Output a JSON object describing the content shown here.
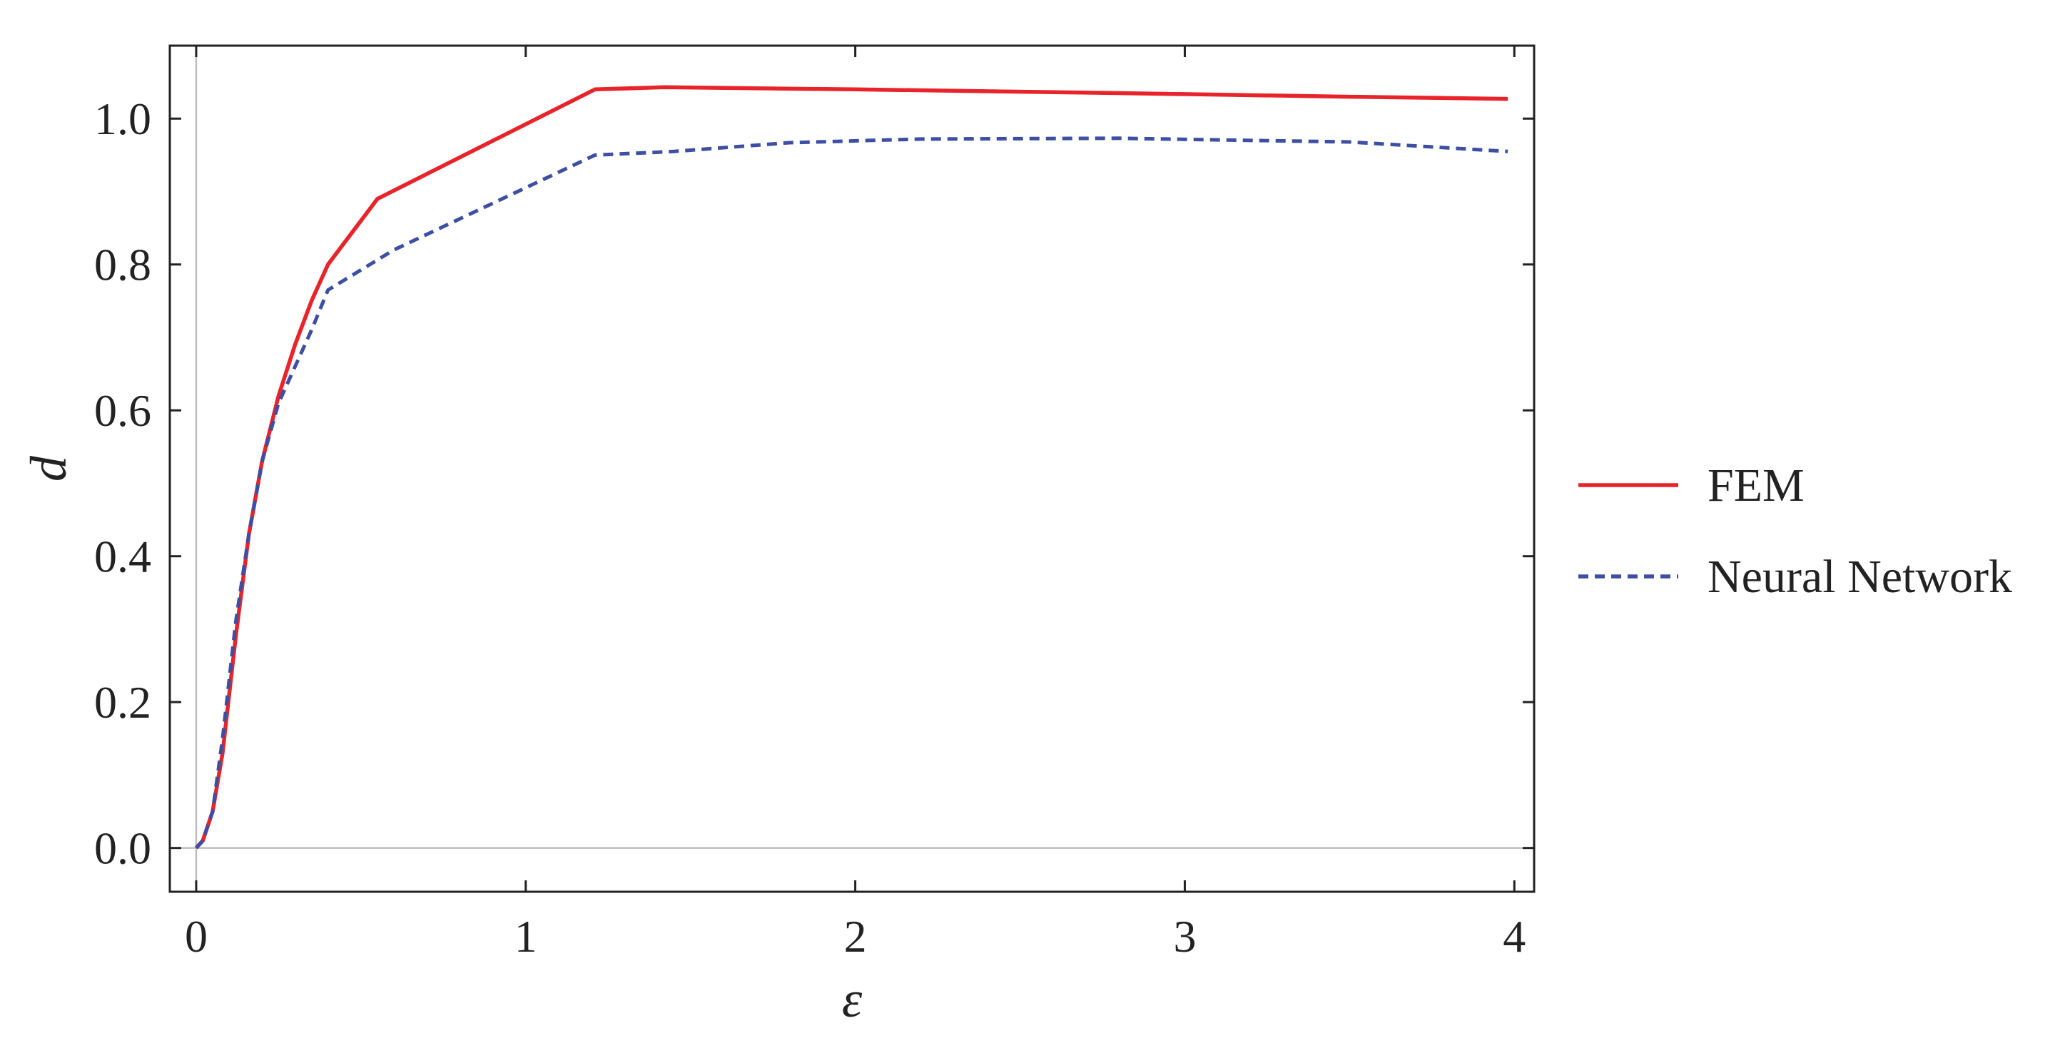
{
  "chart_data": {
    "type": "line",
    "title": "",
    "xlabel": "ε",
    "ylabel": "d",
    "xlim": [
      -0.08,
      4.06
    ],
    "ylim": [
      -0.06,
      1.1
    ],
    "x_ticks": [
      0,
      1,
      2,
      3,
      4
    ],
    "x_tick_labels": [
      "0",
      "1",
      "2",
      "3",
      "4"
    ],
    "y_ticks": [
      0.0,
      0.2,
      0.4,
      0.6,
      0.8,
      1.0
    ],
    "y_tick_labels": [
      "0.0",
      "0.2",
      "0.4",
      "0.6",
      "0.8",
      "1.0"
    ],
    "grid": false,
    "reference_lines": {
      "x": 0,
      "y": 0
    },
    "legend_position": "right",
    "series": [
      {
        "name": "FEM",
        "color": "#e8232a",
        "style": "solid",
        "x": [
          0.0,
          0.02,
          0.05,
          0.08,
          0.12,
          0.16,
          0.2,
          0.25,
          0.3,
          0.35,
          0.4,
          0.55,
          1.21,
          1.42,
          2.0,
          2.8,
          3.5,
          3.98
        ],
        "y": [
          0.0,
          0.01,
          0.05,
          0.13,
          0.29,
          0.43,
          0.53,
          0.62,
          0.69,
          0.75,
          0.8,
          0.89,
          1.04,
          1.043,
          1.04,
          1.035,
          1.03,
          1.027
        ]
      },
      {
        "name": "Neural Network",
        "color": "#3d4fa3",
        "style": "dashed",
        "x": [
          0.0,
          0.02,
          0.05,
          0.08,
          0.12,
          0.16,
          0.2,
          0.25,
          0.3,
          0.35,
          0.4,
          0.6,
          1.21,
          1.45,
          1.8,
          2.2,
          2.8,
          3.5,
          3.98
        ],
        "y": [
          0.0,
          0.01,
          0.05,
          0.15,
          0.31,
          0.43,
          0.53,
          0.61,
          0.66,
          0.71,
          0.765,
          0.82,
          0.95,
          0.955,
          0.967,
          0.972,
          0.973,
          0.968,
          0.955
        ]
      }
    ]
  }
}
